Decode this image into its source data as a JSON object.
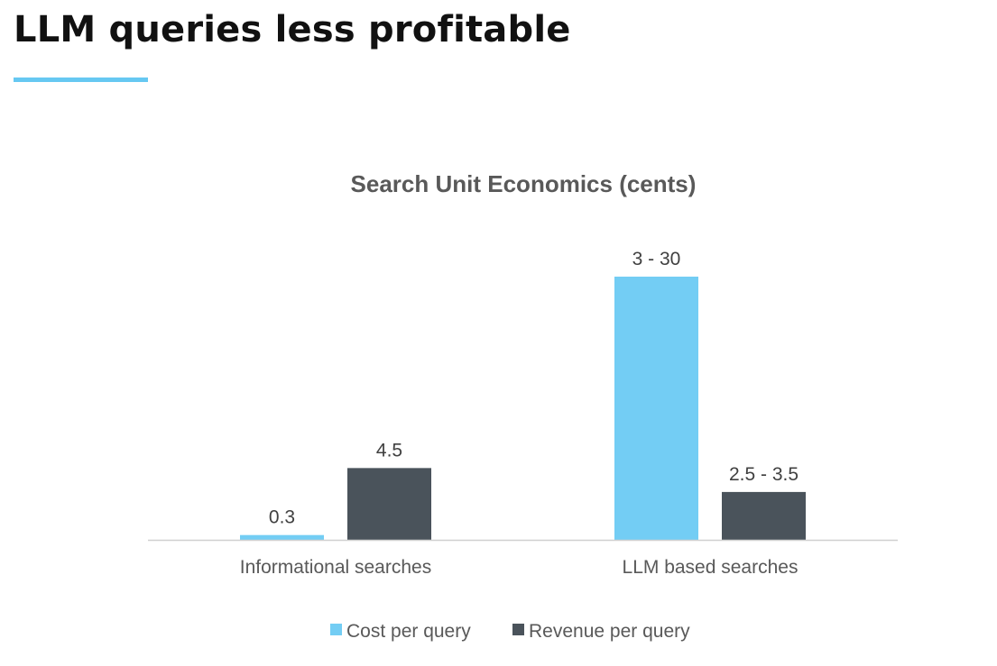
{
  "slide": {
    "title": "LLM queries less profitable",
    "accent_color": "#66c8f2"
  },
  "chart_data": {
    "type": "bar",
    "title": "Search Unit Economics (cents)",
    "xlabel": "",
    "ylabel": "",
    "categories": [
      "Informational searches",
      "LLM based searches"
    ],
    "series": [
      {
        "name": "Cost per query",
        "color": "#73cdf4",
        "values": [
          0.3,
          16.5
        ],
        "labels": [
          "0.3",
          "3 - 30"
        ]
      },
      {
        "name": "Revenue per query",
        "color": "#4a535b",
        "values": [
          4.5,
          3
        ],
        "labels": [
          "4.5",
          "2.5 - 3.5"
        ]
      }
    ],
    "ylim": [
      0,
      20
    ],
    "grid": false,
    "legend": "bottom"
  }
}
